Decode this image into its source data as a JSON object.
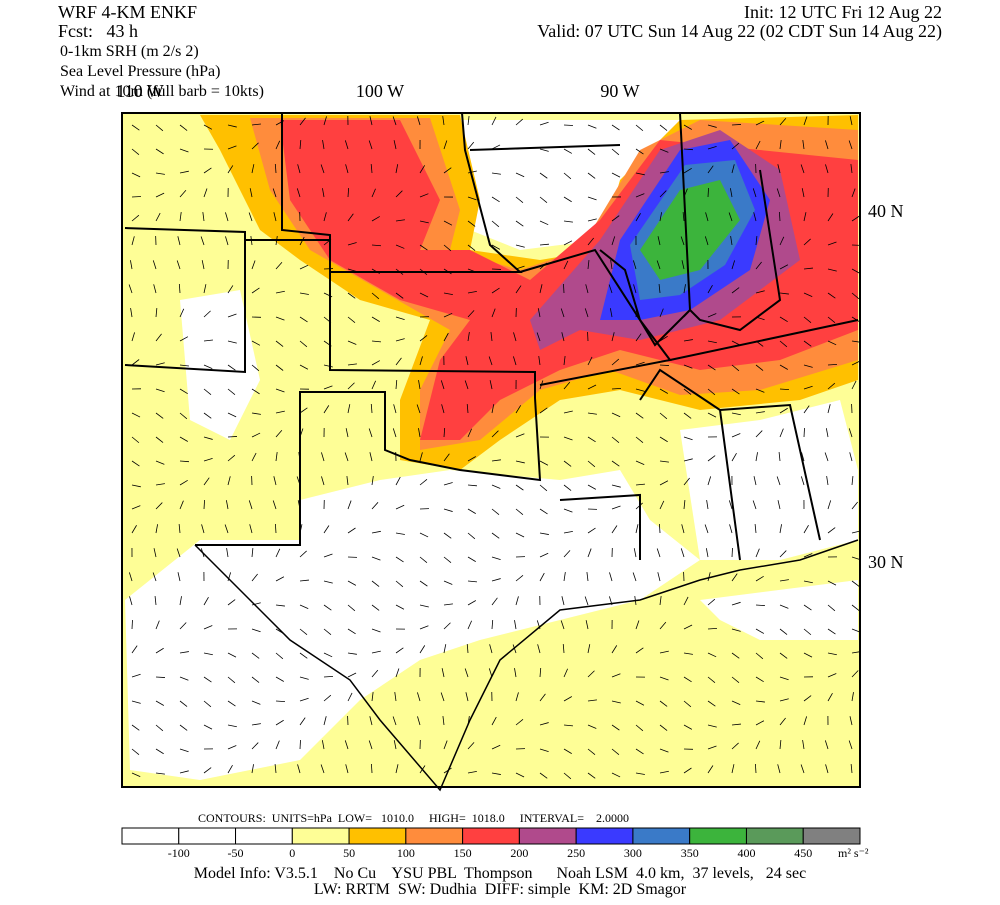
{
  "header": {
    "model": "WRF 4-KM ENKF",
    "forecast": "Fcst:   43 h",
    "init": "Init: 12 UTC Fri 12 Aug 22",
    "valid": "Valid: 07 UTC Sun 14 Aug 22 (02 CDT Sun 14 Aug 22)",
    "fields": [
      "0-1km SRH (m 2/s 2)",
      "Sea Level Pressure (hPa)",
      "Wind at 10m (full barb = 10kts)"
    ]
  },
  "map": {
    "longitude_labels": [
      "110 W",
      "100 W",
      "90 W"
    ],
    "latitude_labels": [
      "40 N",
      "30 N"
    ]
  },
  "contours": "CONTOURS:  UNITS=hPa  LOW=   1010.0     HIGH=  1018.0     INTERVAL=    2.0000",
  "colorbar": {
    "colors": [
      "#ffffff",
      "#ffffff",
      "#ffffff",
      "#fefe96",
      "#ffc000",
      "#ff8c3c",
      "#ff4040",
      "#b04a8c",
      "#3a3aff",
      "#3a7ac8",
      "#3cb43c",
      "#5a9a5a",
      "#808080"
    ],
    "labels": [
      "-100",
      "-50",
      "0",
      "50",
      "100",
      "150",
      "200",
      "250",
      "300",
      "350",
      "400",
      "450"
    ],
    "units": "m² s⁻²"
  },
  "footer": [
    "Model Info: V3.5.1    No Cu    YSU PBL  Thompson      Noah LSM  4.0 km,  37 levels,   24 sec",
    "LW: RRTM  SW: Dudhia  DIFF: simple  KM: 2D Smagor"
  ]
}
